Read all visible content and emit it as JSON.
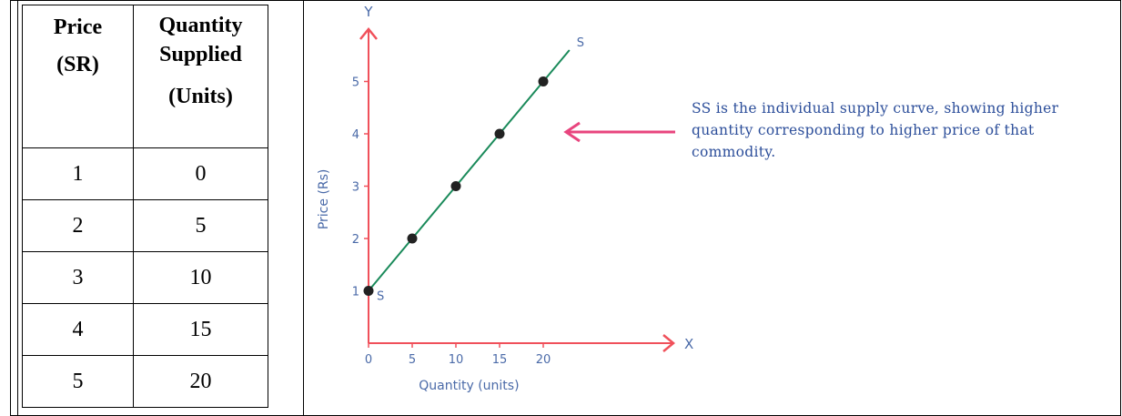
{
  "table": {
    "headers": [
      [
        "Price",
        "(SR)"
      ],
      [
        "Quantity",
        "Supplied",
        "(Units)"
      ]
    ],
    "rows": [
      {
        "price": "1",
        "qty": "0"
      },
      {
        "price": "2",
        "qty": "5"
      },
      {
        "price": "3",
        "qty": "10"
      },
      {
        "price": "4",
        "qty": "15"
      },
      {
        "price": "5",
        "qty": "20"
      }
    ]
  },
  "annotation": "SS is the individual supply curve, showing higher quantity corresponding to higher price of that commodity.",
  "chart_data": {
    "type": "line",
    "xlabel": "Quantity (units)",
    "ylabel": "Price (Rs)",
    "x_axis_letter": "X",
    "y_axis_letter": "Y",
    "xlim": [
      0,
      23
    ],
    "ylim": [
      0,
      5.5
    ],
    "x_ticks": [
      0,
      5,
      10,
      15,
      20
    ],
    "y_ticks": [
      1,
      2,
      3,
      4,
      5
    ],
    "grid": false,
    "legend": "none",
    "series": [
      {
        "name": "S",
        "points": [
          [
            0,
            1
          ],
          [
            5,
            2
          ],
          [
            10,
            3
          ],
          [
            15,
            4
          ],
          [
            20,
            5
          ]
        ],
        "line_end": [
          23,
          5.6
        ]
      }
    ],
    "curve_labels": {
      "start": "S",
      "end": "S"
    },
    "colors": {
      "axis": "#f0505a",
      "line": "#1a8a5a",
      "point": "#222222",
      "text": "#4a6aa8",
      "arrow": "#e8457e",
      "annotation": "#2c4e9a"
    }
  }
}
